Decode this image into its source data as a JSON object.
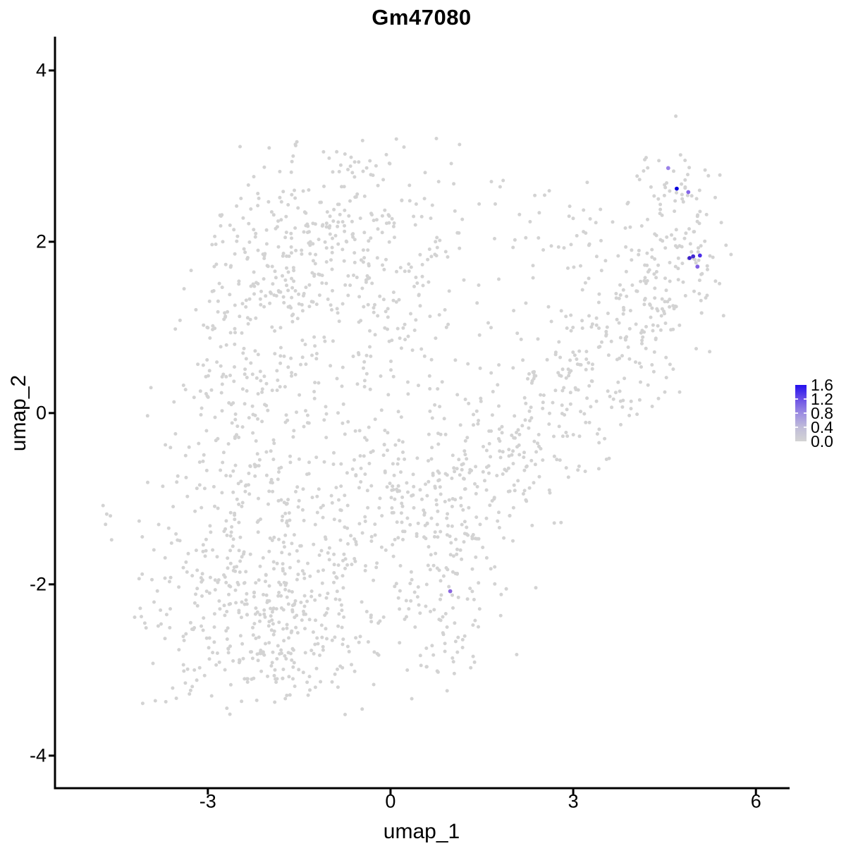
{
  "figure": {
    "background": "#FFFFFF"
  },
  "chart_data": {
    "type": "scatter",
    "title": "Gm47080",
    "xlabel": "umap_1",
    "ylabel": "umap_2",
    "x_ticks": [
      -3,
      0,
      3,
      6
    ],
    "y_ticks": [
      4,
      2,
      0,
      -2,
      -4
    ],
    "x_range": [
      -5.51,
      6.53
    ],
    "y_range": [
      -4.38,
      4.37
    ],
    "grid": false,
    "legend_position": "right",
    "axis_color": "#000000",
    "point_color_default": "#D3D3D3",
    "legend": {
      "min": 0.0,
      "max": 1.6,
      "ticks": [
        1.6,
        1.2,
        0.8,
        0.4,
        0.0
      ],
      "gradient": [
        "#D3D3D3",
        "#C0BCD9",
        "#9C8CE2",
        "#6A4FE6",
        "#2410EE"
      ]
    },
    "expressing_cells": [
      {
        "x": 4.56,
        "y": 2.86,
        "value": 0.7,
        "color": "#9B82E8"
      },
      {
        "x": 4.7,
        "y": 2.62,
        "value": 1.6,
        "color": "#0A00DC"
      },
      {
        "x": 4.89,
        "y": 2.58,
        "value": 0.85,
        "color": "#8566E8"
      },
      {
        "x": 4.91,
        "y": 1.81,
        "value": 1.25,
        "color": "#3D22CC"
      },
      {
        "x": 4.97,
        "y": 1.83,
        "value": 1.25,
        "color": "#4229D2"
      },
      {
        "x": 5.08,
        "y": 1.84,
        "value": 1.3,
        "color": "#4A2BE8"
      },
      {
        "x": 5.04,
        "y": 1.71,
        "value": 0.85,
        "color": "#8160E4"
      },
      {
        "x": 0.98,
        "y": -2.08,
        "value": 0.8,
        "color": "#8A66E0"
      }
    ],
    "background_cloud": {
      "seed": 7,
      "n_points_approx": 2060,
      "clusters": [
        {
          "name": "upper-left-lobe",
          "kind": "gauss",
          "cx": -1.0,
          "cy": 1.75,
          "sx": 1.05,
          "sy": 0.7,
          "n": 400,
          "clip": {
            "x": [
              -3.1,
              1.8
            ],
            "y": [
              0.25,
              3.2
            ]
          }
        },
        {
          "name": "upper-left-west",
          "kind": "gauss",
          "cx": -2.35,
          "cy": 0.85,
          "sx": 0.6,
          "sy": 0.65,
          "n": 110,
          "clip": {
            "x": [
              -3.6,
              -1.2
            ],
            "y": [
              -0.2,
              2.6
            ]
          }
        },
        {
          "name": "left-bridge",
          "kind": "gauss",
          "cx": -2.2,
          "cy": -0.35,
          "sx": 0.85,
          "sy": 0.55,
          "n": 140,
          "clip": {
            "x": [
              -4.0,
              -0.6
            ],
            "y": [
              -1.5,
              0.5
            ]
          }
        },
        {
          "name": "lower-left-lobe",
          "kind": "gauss",
          "cx": -2.05,
          "cy": -2.1,
          "sx": 1.0,
          "sy": 0.65,
          "n": 420,
          "clip": {
            "x": [
              -4.35,
              -0.2
            ],
            "y": [
              -3.55,
              -0.7
            ]
          }
        },
        {
          "name": "lower-left-bottom",
          "kind": "gauss",
          "cx": -1.8,
          "cy": -2.95,
          "sx": 0.7,
          "sy": 0.3,
          "n": 70,
          "clip": {
            "y": [
              -3.55,
              -2.3
            ]
          }
        },
        {
          "name": "center-lobe",
          "kind": "gauss",
          "cx": 0.35,
          "cy": -0.9,
          "sx": 0.9,
          "sy": 0.95,
          "n": 300,
          "clip": {
            "x": [
              -1.6,
              2.2
            ],
            "y": [
              -3.2,
              1.2
            ]
          }
        },
        {
          "name": "center-tail",
          "kind": "gauss",
          "cx": 0.75,
          "cy": -2.35,
          "sx": 0.45,
          "sy": 0.45,
          "n": 55
        },
        {
          "name": "mid-top-sparse",
          "kind": "gauss",
          "cx": 1.3,
          "cy": 2.6,
          "sx": 0.45,
          "sy": 0.35,
          "n": 12
        },
        {
          "name": "diagonal-band",
          "kind": "segment",
          "x1": 1.2,
          "y1": -1.25,
          "x2": 4.25,
          "y2": 1.55,
          "sigma": 0.5,
          "n": 320
        },
        {
          "name": "upper-band-sparse",
          "kind": "segment",
          "x1": 1.8,
          "y1": 1.9,
          "x2": 3.8,
          "y2": 2.2,
          "sigma": 0.35,
          "n": 42
        },
        {
          "name": "right-arm",
          "kind": "segment",
          "x1": 4.05,
          "y1": 0.35,
          "x2": 4.7,
          "y2": 2.7,
          "sigma": 0.3,
          "n": 125
        },
        {
          "name": "right-arm-tip",
          "kind": "gauss",
          "cx": 4.5,
          "cy": 2.95,
          "sx": 0.22,
          "sy": 0.13,
          "n": 10
        },
        {
          "name": "right-edge",
          "kind": "gauss",
          "cx": 5.05,
          "cy": 1.95,
          "sx": 0.3,
          "sy": 0.5,
          "n": 48,
          "clip": {
            "x": [
              4.5,
              5.6
            ]
          }
        }
      ],
      "outlier_points": [
        [
          -4.72,
          -1.08
        ],
        [
          -4.66,
          -1.18
        ],
        [
          -4.6,
          -1.2
        ],
        [
          -4.68,
          -1.3
        ],
        [
          -4.58,
          -1.48
        ]
      ]
    }
  }
}
